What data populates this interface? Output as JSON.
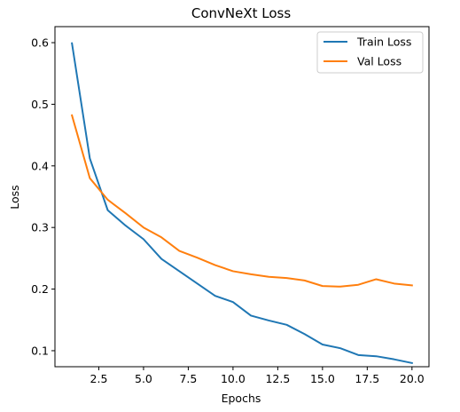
{
  "chart_data": {
    "type": "line",
    "title": "ConvNeXt Loss",
    "xlabel": "Epochs",
    "ylabel": "Loss",
    "xlim": [
      0.05,
      20.95
    ],
    "ylim": [
      0.074,
      0.626
    ],
    "xticks": [
      2.5,
      5.0,
      7.5,
      10.0,
      12.5,
      15.0,
      17.5,
      20.0
    ],
    "xtick_labels": [
      "2.5",
      "5.0",
      "7.5",
      "10.0",
      "12.5",
      "15.0",
      "17.5",
      "20.0"
    ],
    "yticks": [
      0.1,
      0.2,
      0.3,
      0.4,
      0.5,
      0.6
    ],
    "ytick_labels": [
      "0.1",
      "0.2",
      "0.3",
      "0.4",
      "0.5",
      "0.6"
    ],
    "grid": false,
    "legend_position": "top-right",
    "x": [
      1,
      2,
      3,
      4,
      5,
      6,
      7,
      8,
      9,
      10,
      11,
      12,
      13,
      14,
      15,
      16,
      17,
      18,
      19,
      20
    ],
    "series": [
      {
        "name": "Train Loss",
        "color": "#1f77b4",
        "values": [
          0.599,
          0.412,
          0.328,
          0.303,
          0.281,
          0.249,
          0.229,
          0.209,
          0.189,
          0.179,
          0.157,
          0.149,
          0.142,
          0.127,
          0.11,
          0.104,
          0.093,
          0.091,
          0.086,
          0.08
        ]
      },
      {
        "name": "Val Loss",
        "color": "#ff7f0e",
        "values": [
          0.482,
          0.38,
          0.345,
          0.323,
          0.3,
          0.284,
          0.262,
          0.251,
          0.239,
          0.229,
          0.224,
          0.22,
          0.218,
          0.214,
          0.205,
          0.204,
          0.207,
          0.216,
          0.209,
          0.206
        ]
      }
    ]
  }
}
